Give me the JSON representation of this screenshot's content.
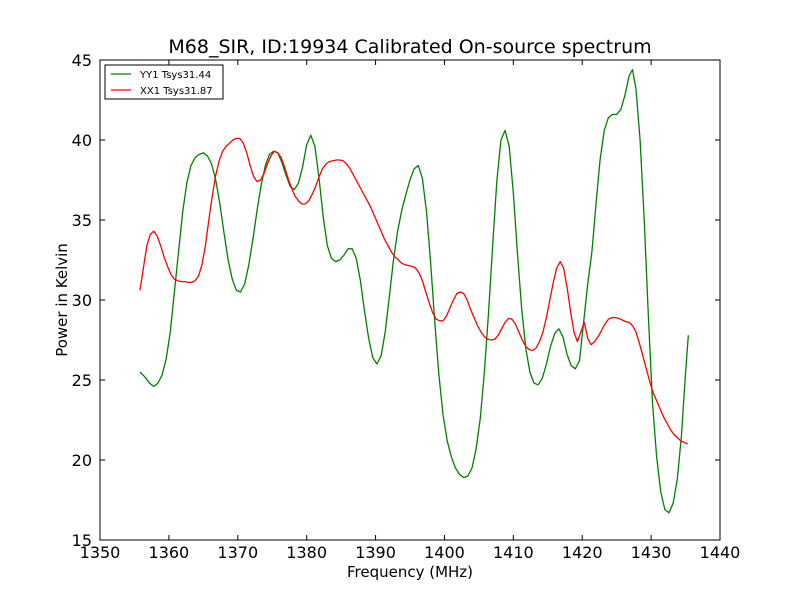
{
  "chart_data": {
    "type": "line",
    "title": "M68_SIR, ID:19934 Calibrated On-source spectrum",
    "xlabel": "Frequency (MHz)",
    "ylabel": "Power in Kelvin",
    "xlim": [
      1350,
      1440
    ],
    "ylim": [
      15,
      45
    ],
    "xticks": [
      1350,
      1360,
      1370,
      1380,
      1390,
      1400,
      1410,
      1420,
      1430,
      1440
    ],
    "yticks": [
      15,
      20,
      25,
      30,
      35,
      40,
      45
    ],
    "grid": false,
    "legend": "top-left",
    "series": [
      {
        "name": "YY1 Tsys31.44",
        "color": "#008000",
        "points": [
          [
            1355.8,
            25.5
          ],
          [
            1356.5,
            25.2
          ],
          [
            1357.2,
            24.8
          ],
          [
            1357.8,
            24.6
          ],
          [
            1358.4,
            24.8
          ],
          [
            1359.0,
            25.3
          ],
          [
            1359.6,
            26.3
          ],
          [
            1360.2,
            28.0
          ],
          [
            1360.8,
            30.5
          ],
          [
            1361.4,
            33.0
          ],
          [
            1362.0,
            35.5
          ],
          [
            1362.6,
            37.3
          ],
          [
            1363.2,
            38.4
          ],
          [
            1363.8,
            38.9
          ],
          [
            1364.4,
            39.1
          ],
          [
            1365.0,
            39.2
          ],
          [
            1365.6,
            39.0
          ],
          [
            1366.2,
            38.5
          ],
          [
            1366.8,
            37.5
          ],
          [
            1367.4,
            36.0
          ],
          [
            1368.0,
            34.2
          ],
          [
            1368.6,
            32.5
          ],
          [
            1369.2,
            31.3
          ],
          [
            1369.8,
            30.6
          ],
          [
            1370.4,
            30.5
          ],
          [
            1371.0,
            31.0
          ],
          [
            1371.6,
            32.2
          ],
          [
            1372.2,
            33.8
          ],
          [
            1372.8,
            35.6
          ],
          [
            1373.4,
            37.2
          ],
          [
            1374.0,
            38.4
          ],
          [
            1374.6,
            39.1
          ],
          [
            1375.2,
            39.3
          ],
          [
            1375.8,
            39.2
          ],
          [
            1376.4,
            38.6
          ],
          [
            1377.0,
            37.8
          ],
          [
            1377.6,
            37.1
          ],
          [
            1378.2,
            36.9
          ],
          [
            1378.8,
            37.3
          ],
          [
            1379.4,
            38.3
          ],
          [
            1380.0,
            39.7
          ],
          [
            1380.6,
            40.3
          ],
          [
            1381.2,
            39.6
          ],
          [
            1381.8,
            37.6
          ],
          [
            1382.4,
            35.2
          ],
          [
            1383.0,
            33.4
          ],
          [
            1383.6,
            32.6
          ],
          [
            1384.2,
            32.4
          ],
          [
            1384.8,
            32.5
          ],
          [
            1385.4,
            32.8
          ],
          [
            1386.0,
            33.2
          ],
          [
            1386.6,
            33.2
          ],
          [
            1387.2,
            32.6
          ],
          [
            1387.8,
            31.2
          ],
          [
            1388.4,
            29.3
          ],
          [
            1389.0,
            27.6
          ],
          [
            1389.6,
            26.4
          ],
          [
            1390.2,
            26.0
          ],
          [
            1390.8,
            26.5
          ],
          [
            1391.4,
            28.0
          ],
          [
            1392.0,
            30.2
          ],
          [
            1392.6,
            32.5
          ],
          [
            1393.2,
            34.3
          ],
          [
            1393.8,
            35.6
          ],
          [
            1394.4,
            36.6
          ],
          [
            1395.0,
            37.5
          ],
          [
            1395.6,
            38.2
          ],
          [
            1396.2,
            38.4
          ],
          [
            1396.8,
            37.6
          ],
          [
            1397.4,
            35.5
          ],
          [
            1398.0,
            32.3
          ],
          [
            1398.6,
            28.6
          ],
          [
            1399.2,
            25.3
          ],
          [
            1399.8,
            22.8
          ],
          [
            1400.4,
            21.2
          ],
          [
            1401.0,
            20.2
          ],
          [
            1401.6,
            19.5
          ],
          [
            1402.2,
            19.1
          ],
          [
            1402.8,
            18.9
          ],
          [
            1403.4,
            19.0
          ],
          [
            1404.0,
            19.5
          ],
          [
            1404.6,
            20.7
          ],
          [
            1405.2,
            22.6
          ],
          [
            1405.8,
            25.5
          ],
          [
            1406.4,
            29.2
          ],
          [
            1407.0,
            33.4
          ],
          [
            1407.6,
            37.4
          ],
          [
            1408.2,
            40.0
          ],
          [
            1408.8,
            40.6
          ],
          [
            1409.4,
            39.6
          ],
          [
            1410.0,
            36.7
          ],
          [
            1410.6,
            32.9
          ],
          [
            1411.2,
            29.5
          ],
          [
            1411.8,
            27.0
          ],
          [
            1412.4,
            25.5
          ],
          [
            1413.0,
            24.8
          ],
          [
            1413.6,
            24.7
          ],
          [
            1414.2,
            25.1
          ],
          [
            1414.8,
            26.0
          ],
          [
            1415.4,
            27.1
          ],
          [
            1416.0,
            27.9
          ],
          [
            1416.6,
            28.2
          ],
          [
            1417.2,
            27.7
          ],
          [
            1417.8,
            26.6
          ],
          [
            1418.4,
            25.9
          ],
          [
            1419.0,
            25.7
          ],
          [
            1419.6,
            26.2
          ],
          [
            1420.2,
            28.6
          ],
          [
            1420.8,
            31.0
          ],
          [
            1421.4,
            33.0
          ],
          [
            1422.0,
            36.0
          ],
          [
            1422.6,
            38.8
          ],
          [
            1423.2,
            40.6
          ],
          [
            1423.8,
            41.4
          ],
          [
            1424.4,
            41.6
          ],
          [
            1425.0,
            41.6
          ],
          [
            1425.6,
            41.9
          ],
          [
            1426.2,
            42.8
          ],
          [
            1426.8,
            44.0
          ],
          [
            1427.3,
            44.4
          ],
          [
            1427.8,
            43.2
          ],
          [
            1428.4,
            40.0
          ],
          [
            1429.0,
            35.0
          ],
          [
            1429.6,
            29.0
          ],
          [
            1430.2,
            23.6
          ],
          [
            1430.8,
            20.2
          ],
          [
            1431.4,
            18.0
          ],
          [
            1432.0,
            16.9
          ],
          [
            1432.6,
            16.7
          ],
          [
            1433.2,
            17.3
          ],
          [
            1433.8,
            18.8
          ],
          [
            1434.4,
            21.5
          ],
          [
            1434.9,
            24.8
          ],
          [
            1435.4,
            27.8
          ]
        ]
      },
      {
        "name": "XX1 Tsys31.87",
        "color": "#ff0000",
        "points": [
          [
            1355.8,
            30.6
          ],
          [
            1356.3,
            32.0
          ],
          [
            1356.8,
            33.4
          ],
          [
            1357.3,
            34.1
          ],
          [
            1357.8,
            34.3
          ],
          [
            1358.3,
            34.0
          ],
          [
            1358.8,
            33.4
          ],
          [
            1359.3,
            32.7
          ],
          [
            1359.8,
            32.1
          ],
          [
            1360.3,
            31.6
          ],
          [
            1360.8,
            31.3
          ],
          [
            1361.3,
            31.2
          ],
          [
            1361.8,
            31.15
          ],
          [
            1362.3,
            31.15
          ],
          [
            1362.8,
            31.1
          ],
          [
            1363.3,
            31.1
          ],
          [
            1363.8,
            31.2
          ],
          [
            1364.3,
            31.5
          ],
          [
            1364.8,
            32.2
          ],
          [
            1365.3,
            33.4
          ],
          [
            1365.8,
            35.0
          ],
          [
            1366.3,
            36.5
          ],
          [
            1366.8,
            37.8
          ],
          [
            1367.3,
            38.7
          ],
          [
            1367.8,
            39.3
          ],
          [
            1368.3,
            39.6
          ],
          [
            1368.8,
            39.8
          ],
          [
            1369.3,
            40.0
          ],
          [
            1369.8,
            40.1
          ],
          [
            1370.3,
            40.1
          ],
          [
            1370.8,
            39.8
          ],
          [
            1371.3,
            39.2
          ],
          [
            1371.8,
            38.4
          ],
          [
            1372.3,
            37.7
          ],
          [
            1372.8,
            37.4
          ],
          [
            1373.3,
            37.5
          ],
          [
            1373.8,
            37.9
          ],
          [
            1374.3,
            38.5
          ],
          [
            1374.8,
            39.0
          ],
          [
            1375.3,
            39.3
          ],
          [
            1375.8,
            39.2
          ],
          [
            1376.3,
            38.9
          ],
          [
            1376.8,
            38.3
          ],
          [
            1377.3,
            37.6
          ],
          [
            1377.8,
            37.0
          ],
          [
            1378.3,
            36.5
          ],
          [
            1378.8,
            36.2
          ],
          [
            1379.3,
            36.0
          ],
          [
            1379.8,
            36.0
          ],
          [
            1380.3,
            36.2
          ],
          [
            1380.8,
            36.6
          ],
          [
            1381.3,
            37.1
          ],
          [
            1381.8,
            37.7
          ],
          [
            1382.3,
            38.2
          ],
          [
            1382.8,
            38.5
          ],
          [
            1383.3,
            38.65
          ],
          [
            1383.8,
            38.7
          ],
          [
            1384.3,
            38.75
          ],
          [
            1384.8,
            38.75
          ],
          [
            1385.3,
            38.7
          ],
          [
            1385.8,
            38.5
          ],
          [
            1386.3,
            38.2
          ],
          [
            1386.8,
            37.8
          ],
          [
            1387.3,
            37.4
          ],
          [
            1387.8,
            37.0
          ],
          [
            1388.3,
            36.6
          ],
          [
            1388.8,
            36.2
          ],
          [
            1389.3,
            35.8
          ],
          [
            1389.8,
            35.3
          ],
          [
            1390.3,
            34.8
          ],
          [
            1390.8,
            34.3
          ],
          [
            1391.3,
            33.8
          ],
          [
            1391.8,
            33.4
          ],
          [
            1392.3,
            33.0
          ],
          [
            1392.8,
            32.7
          ],
          [
            1393.3,
            32.5
          ],
          [
            1393.8,
            32.3
          ],
          [
            1394.3,
            32.2
          ],
          [
            1394.8,
            32.15
          ],
          [
            1395.3,
            32.1
          ],
          [
            1395.8,
            32.0
          ],
          [
            1396.3,
            31.7
          ],
          [
            1396.8,
            31.2
          ],
          [
            1397.3,
            30.5
          ],
          [
            1397.8,
            29.8
          ],
          [
            1398.3,
            29.2
          ],
          [
            1398.8,
            28.8
          ],
          [
            1399.3,
            28.7
          ],
          [
            1399.8,
            28.7
          ],
          [
            1400.3,
            29.0
          ],
          [
            1400.8,
            29.5
          ],
          [
            1401.3,
            30.0
          ],
          [
            1401.8,
            30.4
          ],
          [
            1402.3,
            30.5
          ],
          [
            1402.8,
            30.4
          ],
          [
            1403.3,
            30.0
          ],
          [
            1403.8,
            29.4
          ],
          [
            1404.3,
            28.9
          ],
          [
            1404.8,
            28.4
          ],
          [
            1405.3,
            28.0
          ],
          [
            1405.8,
            27.7
          ],
          [
            1406.3,
            27.55
          ],
          [
            1406.8,
            27.5
          ],
          [
            1407.3,
            27.55
          ],
          [
            1407.8,
            27.8
          ],
          [
            1408.3,
            28.2
          ],
          [
            1408.8,
            28.6
          ],
          [
            1409.3,
            28.85
          ],
          [
            1409.8,
            28.8
          ],
          [
            1410.3,
            28.5
          ],
          [
            1410.8,
            28.0
          ],
          [
            1411.3,
            27.5
          ],
          [
            1411.8,
            27.1
          ],
          [
            1412.3,
            26.9
          ],
          [
            1412.8,
            26.85
          ],
          [
            1413.3,
            27.0
          ],
          [
            1413.8,
            27.4
          ],
          [
            1414.3,
            28.0
          ],
          [
            1414.8,
            28.9
          ],
          [
            1415.3,
            30.0
          ],
          [
            1415.8,
            31.1
          ],
          [
            1416.3,
            32.0
          ],
          [
            1416.8,
            32.4
          ],
          [
            1417.3,
            32.0
          ],
          [
            1417.8,
            30.8
          ],
          [
            1418.3,
            29.3
          ],
          [
            1418.8,
            28.0
          ],
          [
            1419.3,
            27.4
          ],
          [
            1419.8,
            28.0
          ],
          [
            1420.3,
            28.6
          ],
          [
            1420.8,
            27.6
          ],
          [
            1421.3,
            27.2
          ],
          [
            1421.8,
            27.4
          ],
          [
            1422.3,
            27.7
          ],
          [
            1422.8,
            28.1
          ],
          [
            1423.3,
            28.5
          ],
          [
            1423.8,
            28.8
          ],
          [
            1424.3,
            28.9
          ],
          [
            1424.8,
            28.9
          ],
          [
            1425.3,
            28.85
          ],
          [
            1425.8,
            28.75
          ],
          [
            1426.3,
            28.65
          ],
          [
            1426.8,
            28.6
          ],
          [
            1427.3,
            28.4
          ],
          [
            1427.8,
            28.0
          ],
          [
            1428.3,
            27.3
          ],
          [
            1428.8,
            26.5
          ],
          [
            1429.3,
            25.7
          ],
          [
            1429.8,
            24.9
          ],
          [
            1430.3,
            24.2
          ],
          [
            1430.8,
            23.7
          ],
          [
            1431.3,
            23.2
          ],
          [
            1431.8,
            22.7
          ],
          [
            1432.3,
            22.3
          ],
          [
            1432.8,
            21.9
          ],
          [
            1433.3,
            21.6
          ],
          [
            1433.8,
            21.4
          ],
          [
            1434.3,
            21.2
          ],
          [
            1434.8,
            21.1
          ],
          [
            1435.3,
            21.0
          ]
        ]
      }
    ]
  }
}
